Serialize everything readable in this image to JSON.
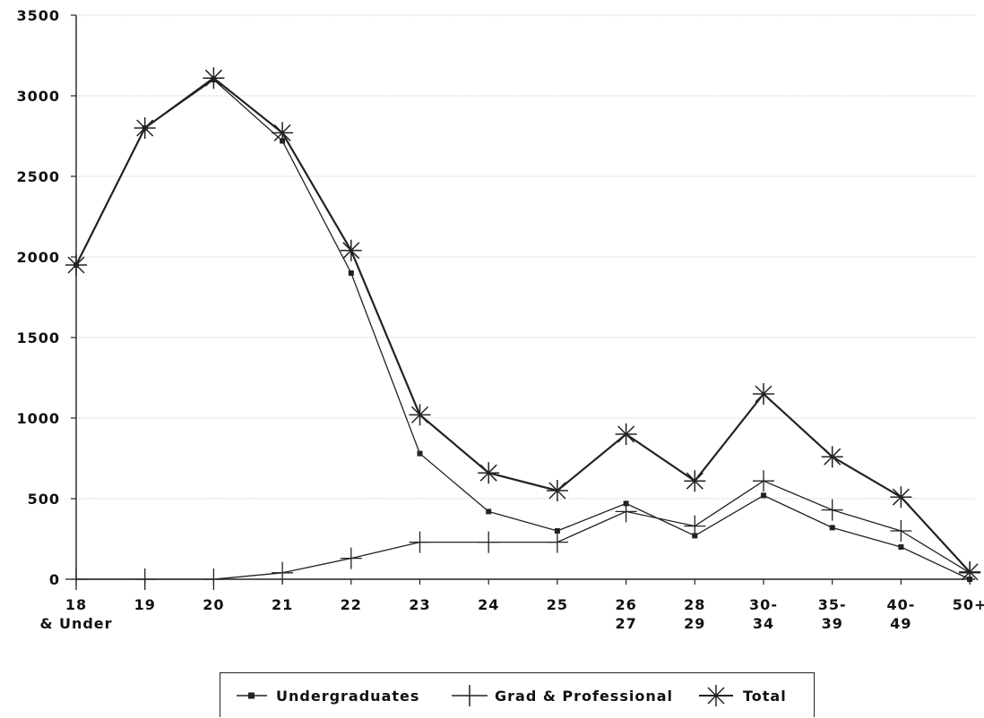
{
  "chart_data": {
    "type": "line",
    "categories": [
      [
        "18",
        "& Under"
      ],
      [
        "19"
      ],
      [
        "20"
      ],
      [
        "21"
      ],
      [
        "22"
      ],
      [
        "23"
      ],
      [
        "24"
      ],
      [
        "25"
      ],
      [
        "26",
        "27"
      ],
      [
        "28",
        "29"
      ],
      [
        "30-",
        "34"
      ],
      [
        "35-",
        "39"
      ],
      [
        "40-",
        "49"
      ],
      [
        "50+"
      ]
    ],
    "yticks": [
      "0",
      "500",
      "1000",
      "1500",
      "2000",
      "2500",
      "3000",
      "3500"
    ],
    "ylim": [
      0,
      3500
    ],
    "grid": true,
    "legend_position": "bottom",
    "series": [
      {
        "name": "Undergraduates",
        "marker": "square",
        "color": "#222222",
        "values": [
          1950,
          2800,
          3100,
          2720,
          1900,
          780,
          420,
          300,
          470,
          270,
          520,
          320,
          200,
          0
        ]
      },
      {
        "name": "Grad & Professional",
        "marker": "plus",
        "color": "#222222",
        "values": [
          0,
          0,
          0,
          40,
          130,
          230,
          230,
          230,
          420,
          330,
          610,
          430,
          300,
          40
        ]
      },
      {
        "name": "Total",
        "marker": "star",
        "color": "#222222",
        "values": [
          1950,
          2800,
          3110,
          2770,
          2040,
          1020,
          660,
          550,
          900,
          610,
          1150,
          760,
          510,
          45
        ]
      }
    ]
  }
}
